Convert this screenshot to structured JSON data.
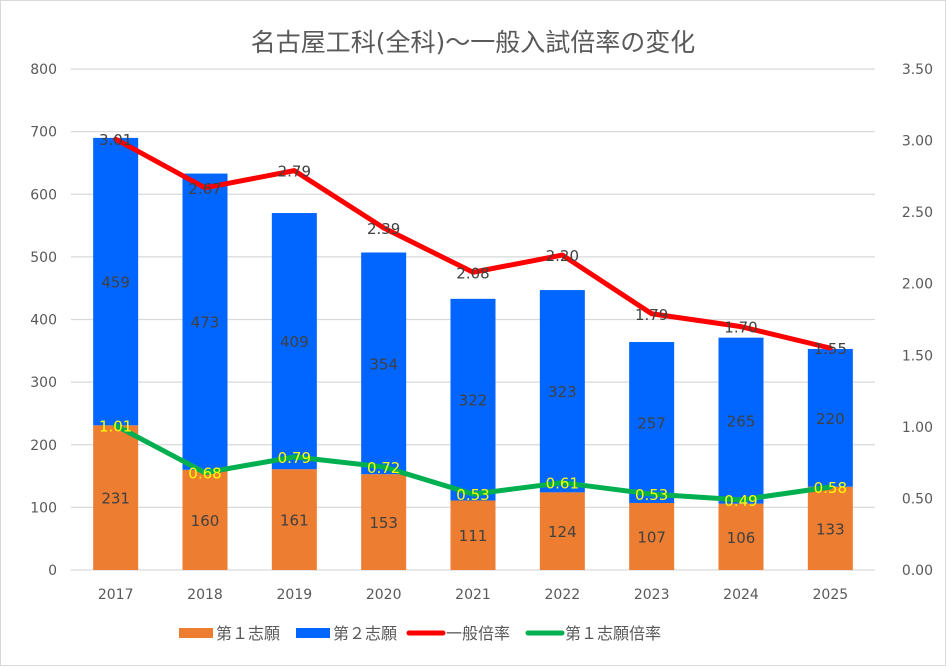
{
  "chart_data": {
    "type": "bar+line",
    "title": "名古屋工科(全科)〜一般入試倍率の変化",
    "categories": [
      "2017",
      "2018",
      "2019",
      "2020",
      "2021",
      "2022",
      "2023",
      "2024",
      "2025"
    ],
    "left_axis": {
      "min": 0,
      "max": 800,
      "ticks": [
        "0",
        "100",
        "200",
        "300",
        "400",
        "500",
        "600",
        "700",
        "800"
      ]
    },
    "right_axis": {
      "min": 0,
      "max": 3.5,
      "ticks": [
        "0.00",
        "0.50",
        "1.00",
        "1.50",
        "2.00",
        "2.50",
        "3.00",
        "3.50"
      ]
    },
    "grid": true,
    "legend_position": "bottom",
    "bar_series": [
      {
        "name": "第１志願",
        "color": "#ED7D31",
        "values": [
          231,
          160,
          161,
          153,
          111,
          124,
          107,
          106,
          133
        ]
      },
      {
        "name": "第２志願",
        "color": "#0066FF",
        "values": [
          459,
          473,
          409,
          354,
          322,
          323,
          257,
          265,
          220
        ]
      }
    ],
    "line_series": [
      {
        "name": "一般倍率",
        "color": "#FF0000",
        "label_color": "#404040",
        "axis": "right",
        "values": [
          3.01,
          2.67,
          2.79,
          2.39,
          2.08,
          2.2,
          1.79,
          1.7,
          1.55
        ],
        "labels": [
          "3.01",
          "2.67",
          "2.79",
          "2.39",
          "2.08",
          "2.20",
          "1.79",
          "1.70",
          "1.55"
        ]
      },
      {
        "name": "第１志願倍率",
        "color": "#00B050",
        "label_color": "#FFFF00",
        "axis": "right",
        "values": [
          1.01,
          0.68,
          0.79,
          0.72,
          0.53,
          0.61,
          0.53,
          0.49,
          0.58
        ],
        "labels": [
          "1.01",
          "0.68",
          "0.79",
          "0.72",
          "0.53",
          "0.61",
          "0.53",
          "0.49",
          "0.58"
        ]
      }
    ]
  }
}
